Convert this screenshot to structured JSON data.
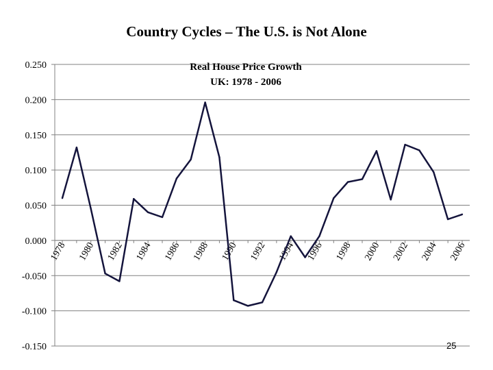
{
  "slide": {
    "title": "Country Cycles – The U.S. is Not Alone",
    "page_number": "25"
  },
  "chart_data": {
    "type": "line",
    "title": "Real House Price Growth",
    "subtitle": "UK:  1978 - 2006",
    "xlabel": "",
    "ylabel": "",
    "x": [
      1978,
      1979,
      1980,
      1981,
      1982,
      1983,
      1984,
      1985,
      1986,
      1987,
      1988,
      1989,
      1990,
      1991,
      1992,
      1993,
      1994,
      1995,
      1996,
      1997,
      1998,
      1999,
      2000,
      2001,
      2002,
      2003,
      2004,
      2005,
      2006
    ],
    "x_tick_labels": [
      "1978",
      "1980",
      "1982",
      "1984",
      "1986",
      "1988",
      "1990",
      "1992",
      "1994",
      "1996",
      "1998",
      "2000",
      "2002",
      "2004",
      "2006"
    ],
    "x_tick_values": [
      1978,
      1980,
      1982,
      1984,
      1986,
      1988,
      1990,
      1992,
      1994,
      1996,
      1998,
      2000,
      2002,
      2004,
      2006
    ],
    "y_tick_labels": [
      "0.250",
      "0.200",
      "0.150",
      "0.100",
      "0.050",
      "0.000",
      "-0.050",
      "-0.100",
      "-0.150"
    ],
    "y_tick_values": [
      0.25,
      0.2,
      0.15,
      0.1,
      0.05,
      0.0,
      -0.05,
      -0.1,
      -0.15
    ],
    "series": [
      {
        "values": [
          0.06,
          0.132,
          0.045,
          -0.047,
          -0.058,
          0.059,
          0.04,
          0.033,
          0.088,
          0.115,
          0.196,
          0.118,
          -0.085,
          -0.093,
          -0.088,
          -0.045,
          0.006,
          -0.024,
          0.006,
          0.06,
          0.083,
          0.087,
          0.127,
          0.058,
          0.136,
          0.128,
          0.097,
          0.03,
          0.037
        ],
        "color": "#14143c"
      }
    ],
    "ylim": [
      -0.15,
      0.25
    ],
    "xlim": [
      1978,
      2006
    ],
    "grid": "horizontal",
    "axis_color": "#808080",
    "grid_color": "#808080"
  }
}
